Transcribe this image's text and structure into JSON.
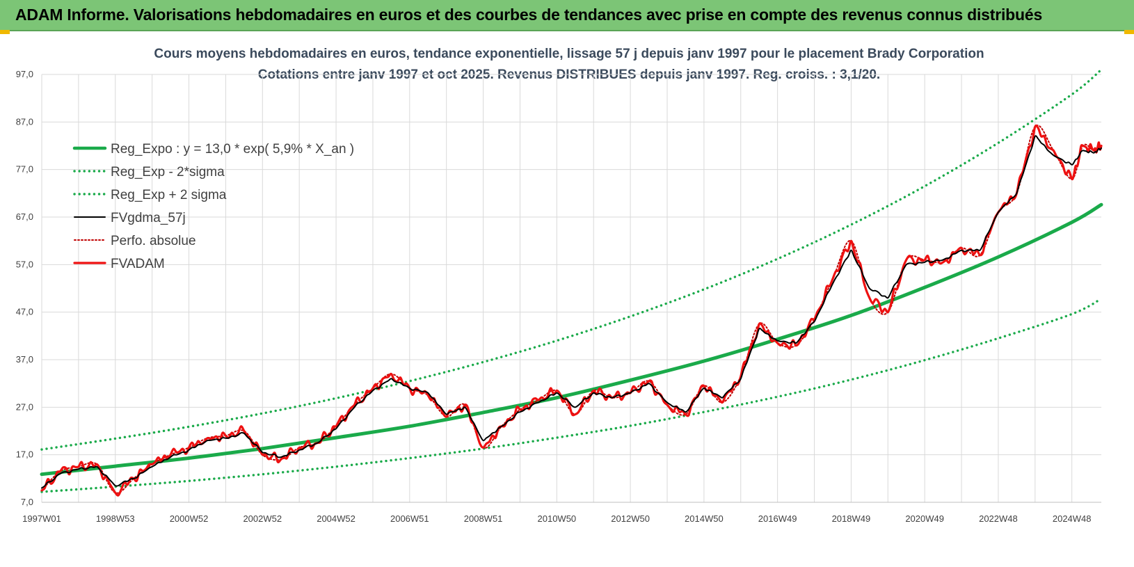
{
  "header": {
    "title": "ADAM Informe. Valorisations hebdomadaires en euros et des courbes de tendances avec prise en compte des revenus connus distribués"
  },
  "colors": {
    "banner": "#7cc576",
    "trend": "#1aaa4a",
    "sigma": "#1aaa4a",
    "smooth": "#000000",
    "perfo": "#c00000",
    "adam": "#ee1111",
    "grid": "#d9d9d9",
    "accent": "#f0b800"
  },
  "chart_data": {
    "type": "line",
    "title": "Cours moyens hebdomadaires en euros, tendance exponentielle, lissage 57 j depuis janv 1997 pour le placement Brady Corporation",
    "subtitle": "Cotations entre janv 1997 et oct 2025. Revenus DISTRIBUES depuis janv 1997. Reg. croiss. : 3,1/20.",
    "xlabel": "",
    "ylabel": "",
    "ylim": [
      7,
      97
    ],
    "xlim": [
      1997.0,
      2025.8
    ],
    "y_ticks": [
      "97,0",
      "87,0",
      "77,0",
      "67,0",
      "57,0",
      "47,0",
      "37,0",
      "27,0",
      "17,0",
      "7,0"
    ],
    "x_ticks": [
      {
        "label": "1997W01",
        "x": 1997.0
      },
      {
        "label": "1998W53",
        "x": 1999.0
      },
      {
        "label": "2000W52",
        "x": 2001.0
      },
      {
        "label": "2002W52",
        "x": 2003.0
      },
      {
        "label": "2004W52",
        "x": 2005.0
      },
      {
        "label": "2006W51",
        "x": 2007.0
      },
      {
        "label": "2008W51",
        "x": 2009.0
      },
      {
        "label": "2010W50",
        "x": 2011.0
      },
      {
        "label": "2012W50",
        "x": 2013.0
      },
      {
        "label": "2014W50",
        "x": 2015.0
      },
      {
        "label": "2016W49",
        "x": 2017.0
      },
      {
        "label": "2018W49",
        "x": 2019.0
      },
      {
        "label": "2020W49",
        "x": 2021.0
      },
      {
        "label": "2022W48",
        "x": 2023.0
      },
      {
        "label": "2024W48",
        "x": 2025.0
      }
    ],
    "grid": true,
    "legend_position": "top-left",
    "series": [
      {
        "name": "Reg_Expo : y = 13,0 * exp( 5,9% *  X_an )",
        "style": "solid-thick",
        "color": "#1aaa4a",
        "x": [
          1997.0,
          1999.0,
          2001.0,
          2003.0,
          2005.0,
          2007.0,
          2009.0,
          2011.0,
          2013.0,
          2015.0,
          2017.0,
          2019.0,
          2021.0,
          2023.0,
          2025.0,
          2025.8
        ],
        "y": [
          12.9,
          14.6,
          16.3,
          18.3,
          20.6,
          23.0,
          25.9,
          29.0,
          32.7,
          36.7,
          41.3,
          46.3,
          52.2,
          58.6,
          65.9,
          69.6
        ]
      },
      {
        "name": "Reg_Exp - 2*sigma",
        "style": "dotted",
        "color": "#1aaa4a",
        "x": [
          1997.0,
          1999.0,
          2001.0,
          2003.0,
          2005.0,
          2007.0,
          2009.0,
          2011.0,
          2013.0,
          2015.0,
          2017.0,
          2019.0,
          2021.0,
          2023.0,
          2025.0,
          2025.8
        ],
        "y": [
          9.2,
          10.3,
          11.5,
          12.9,
          14.5,
          16.3,
          18.3,
          20.6,
          23.1,
          26.0,
          29.2,
          32.8,
          36.9,
          41.5,
          46.6,
          49.8
        ]
      },
      {
        "name": "Reg_Exp + 2 sigma",
        "style": "dotted",
        "color": "#1aaa4a",
        "x": [
          1997.0,
          1999.0,
          2001.0,
          2003.0,
          2005.0,
          2007.0,
          2009.0,
          2011.0,
          2013.0,
          2015.0,
          2017.0,
          2019.0,
          2021.0,
          2023.0,
          2025.0,
          2025.8
        ],
        "y": [
          18.1,
          20.4,
          22.9,
          25.7,
          28.9,
          32.5,
          36.5,
          41.0,
          46.1,
          51.8,
          58.2,
          65.4,
          73.5,
          82.6,
          92.8,
          98.0
        ]
      },
      {
        "name": "FVgdma_57j",
        "style": "solid",
        "color": "#000000",
        "x": [
          1997.0,
          1997.5,
          1998.0,
          1998.5,
          1999.0,
          1999.5,
          2000.0,
          2000.5,
          2001.0,
          2001.5,
          2002.0,
          2002.5,
          2003.0,
          2003.5,
          2004.0,
          2004.5,
          2005.0,
          2005.5,
          2006.0,
          2006.5,
          2007.0,
          2007.5,
          2008.0,
          2008.5,
          2009.0,
          2009.5,
          2010.0,
          2010.5,
          2011.0,
          2011.5,
          2012.0,
          2012.5,
          2013.0,
          2013.5,
          2014.0,
          2014.5,
          2015.0,
          2015.5,
          2016.0,
          2016.5,
          2017.0,
          2017.5,
          2018.0,
          2018.5,
          2019.0,
          2019.5,
          2020.0,
          2020.5,
          2021.0,
          2021.5,
          2022.0,
          2022.5,
          2023.0,
          2023.5,
          2024.0,
          2024.5,
          2025.0,
          2025.3,
          2025.6,
          2025.8
        ],
        "y": [
          10.0,
          13.0,
          14.0,
          14.5,
          10.5,
          12.0,
          14.5,
          16.5,
          18.0,
          20.0,
          20.5,
          21.5,
          17.5,
          16.5,
          18.0,
          19.5,
          22.5,
          27.0,
          30.5,
          33.0,
          31.0,
          30.0,
          25.5,
          27.0,
          20.0,
          23.0,
          26.0,
          28.0,
          30.0,
          27.0,
          30.0,
          29.0,
          30.0,
          32.0,
          28.0,
          26.0,
          31.0,
          29.0,
          33.0,
          43.5,
          41.0,
          40.5,
          45.0,
          53.0,
          60.0,
          52.0,
          50.0,
          57.0,
          57.5,
          58.0,
          60.0,
          60.0,
          68.0,
          72.0,
          84.0,
          80.0,
          78.0,
          81.0,
          80.5,
          81.5
        ]
      },
      {
        "name": "Perfo. absolue",
        "style": "dotted",
        "color": "#c00000",
        "x": [
          1997.0,
          1997.5,
          1998.0,
          1998.5,
          1999.0,
          1999.5,
          2000.0,
          2000.5,
          2001.0,
          2001.5,
          2002.0,
          2002.5,
          2003.0,
          2003.5,
          2004.0,
          2004.5,
          2005.0,
          2005.5,
          2006.0,
          2006.5,
          2007.0,
          2007.5,
          2008.0,
          2008.5,
          2009.0,
          2009.5,
          2010.0,
          2010.5,
          2011.0,
          2011.5,
          2012.0,
          2012.5,
          2013.0,
          2013.5,
          2014.0,
          2014.5,
          2015.0,
          2015.5,
          2016.0,
          2016.5,
          2017.0,
          2017.5,
          2018.0,
          2018.5,
          2019.0,
          2019.5,
          2020.0,
          2020.5,
          2021.0,
          2021.5,
          2022.0,
          2022.5,
          2023.0,
          2023.5,
          2024.0,
          2024.5,
          2025.0,
          2025.3,
          2025.6,
          2025.8
        ],
        "y": [
          9.5,
          13.5,
          14.5,
          15.0,
          9.0,
          12.0,
          15.0,
          17.0,
          18.5,
          20.5,
          21.0,
          22.0,
          17.0,
          16.0,
          18.5,
          19.5,
          23.0,
          27.5,
          31.0,
          34.0,
          31.0,
          29.5,
          25.0,
          27.5,
          18.5,
          23.0,
          26.5,
          28.5,
          30.5,
          25.5,
          30.5,
          29.0,
          30.0,
          32.5,
          27.5,
          25.5,
          31.5,
          28.0,
          33.5,
          44.5,
          40.5,
          40.0,
          45.5,
          54.0,
          62.0,
          50.0,
          47.0,
          58.0,
          58.0,
          57.5,
          60.5,
          59.0,
          68.0,
          72.0,
          86.0,
          81.0,
          75.0,
          82.0,
          81.0,
          82.0
        ]
      },
      {
        "name": "FVADAM",
        "style": "solid-thick",
        "color": "#ee1111",
        "x": [
          1997.0,
          1997.5,
          1998.0,
          1998.5,
          1999.0,
          1999.5,
          2000.0,
          2000.5,
          2001.0,
          2001.5,
          2002.0,
          2002.5,
          2003.0,
          2003.5,
          2004.0,
          2004.5,
          2005.0,
          2005.5,
          2006.0,
          2006.5,
          2007.0,
          2007.5,
          2008.0,
          2008.5,
          2009.0,
          2009.5,
          2010.0,
          2010.5,
          2011.0,
          2011.5,
          2012.0,
          2012.5,
          2013.0,
          2013.5,
          2014.0,
          2014.5,
          2015.0,
          2015.5,
          2016.0,
          2016.5,
          2017.0,
          2017.5,
          2018.0,
          2018.5,
          2019.0,
          2019.5,
          2020.0,
          2020.5,
          2021.0,
          2021.5,
          2022.0,
          2022.5,
          2023.0,
          2023.5,
          2024.0,
          2024.5,
          2025.0,
          2025.3,
          2025.6,
          2025.8
        ],
        "y": [
          9.5,
          13.5,
          14.5,
          15.0,
          9.0,
          12.0,
          15.0,
          17.0,
          18.5,
          20.5,
          21.0,
          22.0,
          17.0,
          16.0,
          18.5,
          19.5,
          23.0,
          27.5,
          31.0,
          34.0,
          31.0,
          29.5,
          25.0,
          27.5,
          18.5,
          23.0,
          26.5,
          28.5,
          30.5,
          25.5,
          30.5,
          29.0,
          30.0,
          32.5,
          27.5,
          25.5,
          31.5,
          28.0,
          33.5,
          44.5,
          40.5,
          40.0,
          45.5,
          54.0,
          62.0,
          50.0,
          47.0,
          58.0,
          58.0,
          57.5,
          60.5,
          59.0,
          68.0,
          72.0,
          86.0,
          81.0,
          75.0,
          82.0,
          81.0,
          82.0
        ]
      }
    ]
  }
}
